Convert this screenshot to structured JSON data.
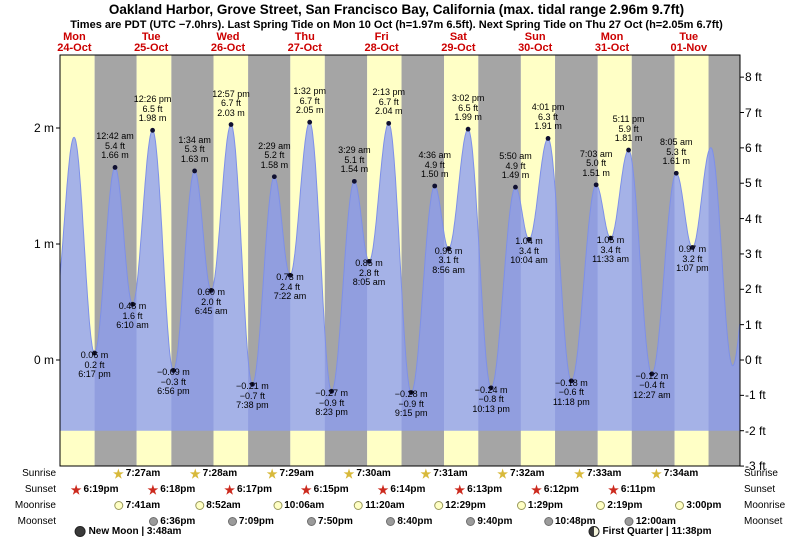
{
  "header": {
    "title": "Oakland Harbor, Grove Street, San Francisco Bay, California (max. tidal range 2.96m 9.7ft)",
    "subtitle": "Times are PDT (UTC −7.0hrs). Last Spring Tide on Mon 10 Oct (h=1.97m 6.5ft). Next Spring Tide on Thu 27 Oct (h=2.05m 6.7ft)"
  },
  "colors": {
    "day_band": "#ffffc6",
    "night_band": "#a5a5a5",
    "tide_fill": "#8c9cf0",
    "tide_stroke": "#7e90e8",
    "dot": "#101030",
    "day_label": "#cc0000",
    "sunrise_star": "#d8b93a",
    "sunset_star": "#cc2a1e",
    "moonrise_fill": "#ffffc4",
    "moonrise_border": "#99995c",
    "moonset_fill": "#9b9b9b",
    "moonset_border": "#6e6e6e"
  },
  "chart_data": {
    "type": "area",
    "title": "Tide height curve, Oakland Harbor, Grove Street (Oct 24 – Nov 1)",
    "y_axis_left_unit": "m",
    "y_axis_right_unit": "ft",
    "y_range_m": [
      -0.91,
      2.63
    ],
    "grid": false,
    "days": [
      {
        "name": "Mon",
        "date": "24-Oct"
      },
      {
        "name": "Tue",
        "date": "25-Oct"
      },
      {
        "name": "Wed",
        "date": "26-Oct"
      },
      {
        "name": "Thu",
        "date": "27-Oct"
      },
      {
        "name": "Fri",
        "date": "28-Oct"
      },
      {
        "name": "Sat",
        "date": "29-Oct"
      },
      {
        "name": "Sun",
        "date": "30-Oct"
      },
      {
        "name": "Mon",
        "date": "31-Oct"
      },
      {
        "name": "Tue",
        "date": "01-Nov"
      }
    ],
    "y_left_ticks": [
      {
        "m": 2,
        "label": "2 m"
      },
      {
        "m": 1,
        "label": "1 m"
      },
      {
        "m": 0,
        "label": "0 m"
      }
    ],
    "y_right_ticks": [
      {
        "ft": 8,
        "label": "8 ft"
      },
      {
        "ft": 7,
        "label": "7 ft"
      },
      {
        "ft": 6,
        "label": "6 ft"
      },
      {
        "ft": 5,
        "label": "5 ft"
      },
      {
        "ft": 4,
        "label": "4 ft"
      },
      {
        "ft": 3,
        "label": "3 ft"
      },
      {
        "ft": 2,
        "label": "2 ft"
      },
      {
        "ft": 1,
        "label": "1 ft"
      },
      {
        "ft": 0,
        "label": "0 ft"
      },
      {
        "ft": -1,
        "label": "-1 ft"
      },
      {
        "ft": -2,
        "label": "-2 ft"
      },
      {
        "ft": -3,
        "label": "-3 ft"
      }
    ],
    "tides": [
      {
        "type": "low",
        "t": 18.28,
        "h": 0.06,
        "m_label": "0.06 m",
        "ft_label": "0.2 ft",
        "time_label": "6:17 pm"
      },
      {
        "type": "high",
        "t": 24.7,
        "h": 1.66,
        "m_label": "1.66 m",
        "ft_label": "5.4 ft",
        "time_label": "12:42 am"
      },
      {
        "type": "low",
        "t": 30.17,
        "h": 0.48,
        "m_label": "0.48 m",
        "ft_label": "1.6 ft",
        "time_label": "6:10 am"
      },
      {
        "type": "high",
        "t": 36.43,
        "h": 1.98,
        "m_label": "1.98 m",
        "ft_label": "6.5 ft",
        "time_label": "12:26 pm"
      },
      {
        "type": "low",
        "t": 42.93,
        "h": -0.09,
        "m_label": "−0.09 m",
        "ft_label": "−0.3 ft",
        "time_label": "6:56 pm"
      },
      {
        "type": "high",
        "t": 49.57,
        "h": 1.63,
        "m_label": "1.63 m",
        "ft_label": "5.3 ft",
        "time_label": "1:34 am"
      },
      {
        "type": "low",
        "t": 54.75,
        "h": 0.6,
        "m_label": "0.60 m",
        "ft_label": "2.0 ft",
        "time_label": "6:45 am"
      },
      {
        "type": "high",
        "t": 60.95,
        "h": 2.03,
        "m_label": "2.03 m",
        "ft_label": "6.7 ft",
        "time_label": "12:57 pm"
      },
      {
        "type": "low",
        "t": 67.63,
        "h": -0.21,
        "m_label": "−0.21 m",
        "ft_label": "−0.7 ft",
        "time_label": "7:38 pm"
      },
      {
        "type": "high",
        "t": 74.48,
        "h": 1.58,
        "m_label": "1.58 m",
        "ft_label": "5.2 ft",
        "time_label": "2:29 am"
      },
      {
        "type": "low",
        "t": 79.37,
        "h": 0.73,
        "m_label": "0.73 m",
        "ft_label": "2.4 ft",
        "time_label": "7:22 am"
      },
      {
        "type": "high",
        "t": 85.53,
        "h": 2.05,
        "m_label": "2.05 m",
        "ft_label": "6.7 ft",
        "time_label": "1:32 pm"
      },
      {
        "type": "low",
        "t": 92.38,
        "h": -0.27,
        "m_label": "−0.27 m",
        "ft_label": "−0.9 ft",
        "time_label": "8:23 pm"
      },
      {
        "type": "high",
        "t": 99.48,
        "h": 1.54,
        "m_label": "1.54 m",
        "ft_label": "5.1 ft",
        "time_label": "3:29 am"
      },
      {
        "type": "low",
        "t": 104.08,
        "h": 0.85,
        "m_label": "0.85 m",
        "ft_label": "2.8 ft",
        "time_label": "8:05 am"
      },
      {
        "type": "high",
        "t": 110.22,
        "h": 2.04,
        "m_label": "2.04 m",
        "ft_label": "6.7 ft",
        "time_label": "2:13 pm"
      },
      {
        "type": "low",
        "t": 117.25,
        "h": -0.28,
        "m_label": "−0.28 m",
        "ft_label": "−0.9 ft",
        "time_label": "9:15 pm"
      },
      {
        "type": "high",
        "t": 124.6,
        "h": 1.5,
        "m_label": "1.50 m",
        "ft_label": "4.9 ft",
        "time_label": "4:36 am"
      },
      {
        "type": "low",
        "t": 128.93,
        "h": 0.96,
        "m_label": "0.96 m",
        "ft_label": "3.1 ft",
        "time_label": "8:56 am"
      },
      {
        "type": "high",
        "t": 135.03,
        "h": 1.99,
        "m_label": "1.99 m",
        "ft_label": "6.5 ft",
        "time_label": "3:02 pm"
      },
      {
        "type": "low",
        "t": 142.22,
        "h": -0.24,
        "m_label": "−0.24 m",
        "ft_label": "−0.8 ft",
        "time_label": "10:13 pm"
      },
      {
        "type": "high",
        "t": 149.83,
        "h": 1.49,
        "m_label": "1.49 m",
        "ft_label": "4.9 ft",
        "time_label": "5:50 am"
      },
      {
        "type": "low",
        "t": 154.07,
        "h": 1.04,
        "m_label": "1.04 m",
        "ft_label": "3.4 ft",
        "time_label": "10:04 am"
      },
      {
        "type": "high",
        "t": 160.02,
        "h": 1.91,
        "m_label": "1.91 m",
        "ft_label": "6.3 ft",
        "time_label": "4:01 pm"
      },
      {
        "type": "low",
        "t": 167.3,
        "h": -0.18,
        "m_label": "−0.18 m",
        "ft_label": "−0.6 ft",
        "time_label": "11:18 pm"
      },
      {
        "type": "high",
        "t": 175.05,
        "h": 1.51,
        "m_label": "1.51 m",
        "ft_label": "5.0 ft",
        "time_label": "7:03 am"
      },
      {
        "type": "low",
        "t": 179.55,
        "h": 1.05,
        "m_label": "1.05 m",
        "ft_label": "3.4 ft",
        "time_label": "11:33 am"
      },
      {
        "type": "high",
        "t": 185.18,
        "h": 1.81,
        "m_label": "1.81 m",
        "ft_label": "5.9 ft",
        "time_label": "5:11 pm"
      },
      {
        "type": "low",
        "t": 192.45,
        "h": -0.12,
        "m_label": "−0.12 m",
        "ft_label": "−0.4 ft",
        "time_label": "12:27 am"
      },
      {
        "type": "high",
        "t": 200.08,
        "h": 1.61,
        "m_label": "1.61 m",
        "ft_label": "5.3 ft",
        "time_label": "8:05 am"
      },
      {
        "type": "low",
        "t": 205.12,
        "h": 0.97,
        "m_label": "0.97 m",
        "ft_label": "3.2 ft",
        "time_label": "1:07 pm"
      }
    ],
    "edge_extremes": [
      {
        "t": 5.75,
        "h": 0.45
      },
      {
        "t": 11.9,
        "h": 1.92
      },
      {
        "t": 210.9,
        "h": 1.83
      },
      {
        "t": 217.7,
        "h": -0.05
      },
      {
        "t": 224.8,
        "h": 1.6
      }
    ]
  },
  "astro": {
    "rows": [
      {
        "key": "sunrise",
        "label": "Sunrise",
        "events": [
          {
            "time": "7:27am",
            "t": 31.45
          },
          {
            "time": "7:28am",
            "t": 55.47
          },
          {
            "time": "7:29am",
            "t": 79.48
          },
          {
            "time": "7:30am",
            "t": 103.5
          },
          {
            "time": "7:31am",
            "t": 127.52
          },
          {
            "time": "7:32am",
            "t": 151.53
          },
          {
            "time": "7:33am",
            "t": 175.55
          },
          {
            "time": "7:34am",
            "t": 199.57
          }
        ]
      },
      {
        "key": "sunset",
        "label": "Sunset",
        "events": [
          {
            "time": "6:19pm",
            "t": 18.32
          },
          {
            "time": "6:18pm",
            "t": 42.3
          },
          {
            "time": "6:17pm",
            "t": 66.28
          },
          {
            "time": "6:15pm",
            "t": 90.25
          },
          {
            "time": "6:14pm",
            "t": 114.23
          },
          {
            "time": "6:13pm",
            "t": 138.22
          },
          {
            "time": "6:12pm",
            "t": 162.2
          },
          {
            "time": "6:11pm",
            "t": 186.18
          }
        ]
      },
      {
        "key": "moonrise",
        "label": "Moonrise",
        "events": [
          {
            "time": "7:41am",
            "t": 31.68
          },
          {
            "time": "8:52am",
            "t": 56.87
          },
          {
            "time": "10:06am",
            "t": 82.1
          },
          {
            "time": "11:20am",
            "t": 107.33
          },
          {
            "time": "12:29pm",
            "t": 132.48
          },
          {
            "time": "1:29pm",
            "t": 157.48
          },
          {
            "time": "2:19pm",
            "t": 182.32
          },
          {
            "time": "3:00pm",
            "t": 207.0
          }
        ]
      },
      {
        "key": "moonset",
        "label": "Moonset",
        "events": [
          {
            "time": "6:36pm",
            "t": 42.6
          },
          {
            "time": "7:09pm",
            "t": 67.15
          },
          {
            "time": "7:50pm",
            "t": 91.83
          },
          {
            "time": "8:40pm",
            "t": 116.67
          },
          {
            "time": "9:40pm",
            "t": 141.67
          },
          {
            "time": "10:48pm",
            "t": 166.8
          },
          {
            "time": "12:00am",
            "t": 192.0
          }
        ]
      }
    ]
  },
  "moon_notes": {
    "new_moon": "New Moon | 3:48am",
    "first_quarter": "First Quarter | 11:38pm"
  }
}
